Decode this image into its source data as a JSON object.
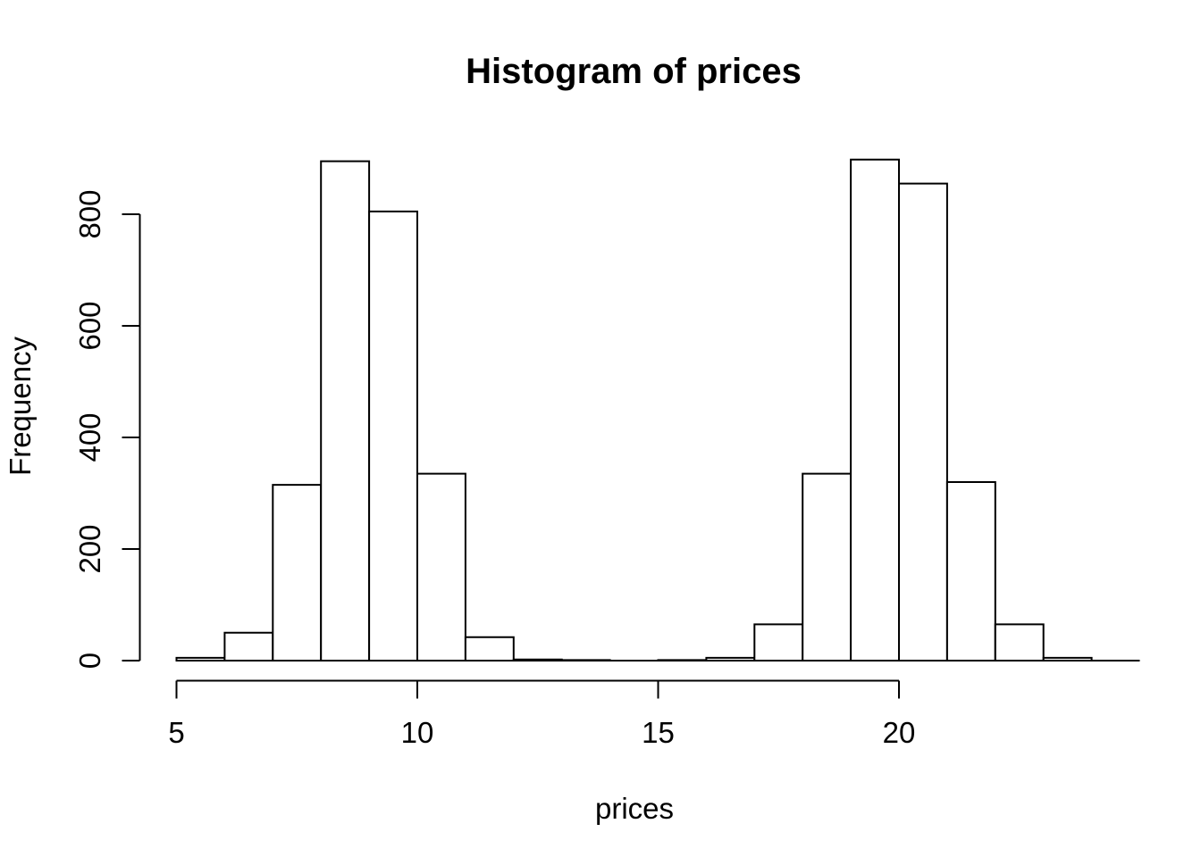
{
  "page": {
    "background": "#ffffff",
    "text_color": "#000000"
  },
  "chart_data": {
    "type": "bar",
    "subtype": "histogram",
    "title": "Histogram of prices",
    "xlabel": "prices",
    "ylabel": "Frequency",
    "bin_edges": [
      5,
      6,
      7,
      8,
      9,
      10,
      11,
      12,
      13,
      14,
      15,
      16,
      17,
      18,
      19,
      20,
      21,
      22,
      23,
      24
    ],
    "counts": [
      5,
      50,
      315,
      895,
      805,
      335,
      42,
      2,
      1,
      0,
      1,
      5,
      65,
      335,
      898,
      855,
      320,
      65,
      5
    ],
    "x_ticks": [
      5,
      10,
      15,
      20
    ],
    "y_ticks": [
      0,
      200,
      400,
      600,
      800
    ],
    "xlim": [
      5,
      24
    ],
    "ylim": [
      0,
      900
    ],
    "grid": "off",
    "legend": "none",
    "colors": {
      "bar_fill": "#ffffff",
      "bar_stroke": "#000000",
      "axis": "#000000",
      "text": "#000000",
      "background": "#ffffff"
    }
  }
}
